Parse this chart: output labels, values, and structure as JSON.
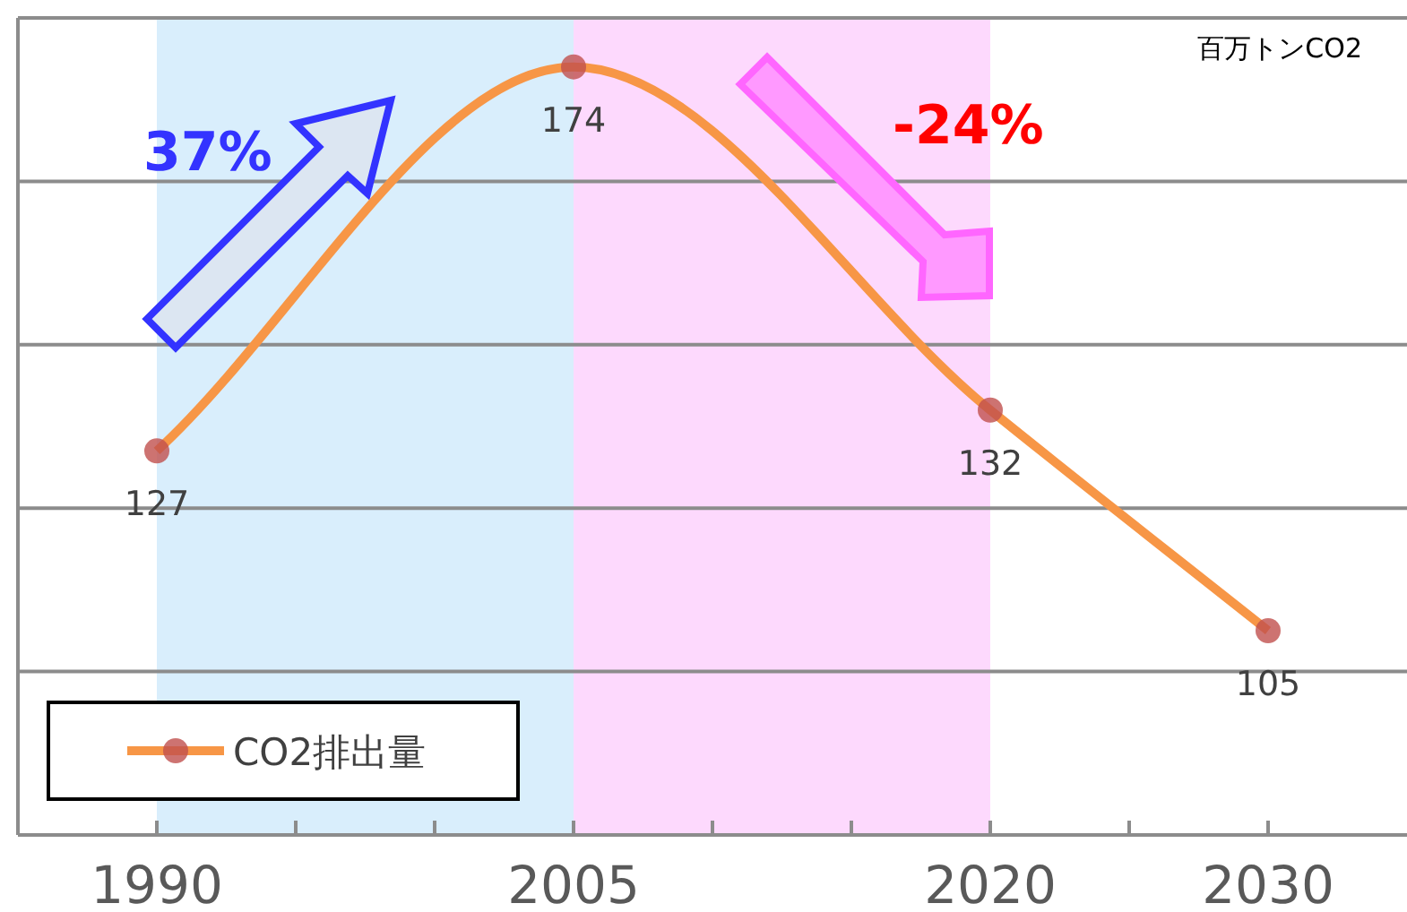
{
  "chart_data": {
    "type": "line",
    "ylabel": "百万トンCO2",
    "x": [
      1990,
      2005,
      2020,
      2030
    ],
    "series": [
      {
        "name": "CO2排出量",
        "color": "#f79646",
        "values": [
          127,
          174,
          132,
          105
        ]
      }
    ],
    "xlim": [
      1985,
      2035
    ],
    "xticks": [
      1990,
      {
        "value": 1995,
        "label": null
      },
      {
        "value": 2000,
        "label": null
      },
      2005,
      {
        "value": 2010,
        "label": null
      },
      {
        "value": 2015,
        "label": null
      },
      2020,
      {
        "value": 2025,
        "label": null
      },
      2030
    ],
    "ylim": [
      80,
      180
    ],
    "yticks": [
      {
        "value": 100,
        "label": null
      },
      {
        "value": 120,
        "label": null
      },
      {
        "value": 140,
        "label": null
      },
      {
        "value": 160,
        "label": null
      },
      {
        "value": 180,
        "label": null
      }
    ],
    "tick_labels": "x",
    "grid": "y",
    "marker": "circle",
    "line_style": "solid",
    "legend": "bottom left",
    "data_labels": true,
    "bands": [
      {
        "axis": "x",
        "from": 1990,
        "to": 2005,
        "color": "#d9eefc"
      },
      {
        "axis": "x",
        "from": 2005,
        "to": 2020,
        "color": "#fdd9fd"
      }
    ],
    "annotations": [
      "37%",
      "-24%"
    ]
  }
}
